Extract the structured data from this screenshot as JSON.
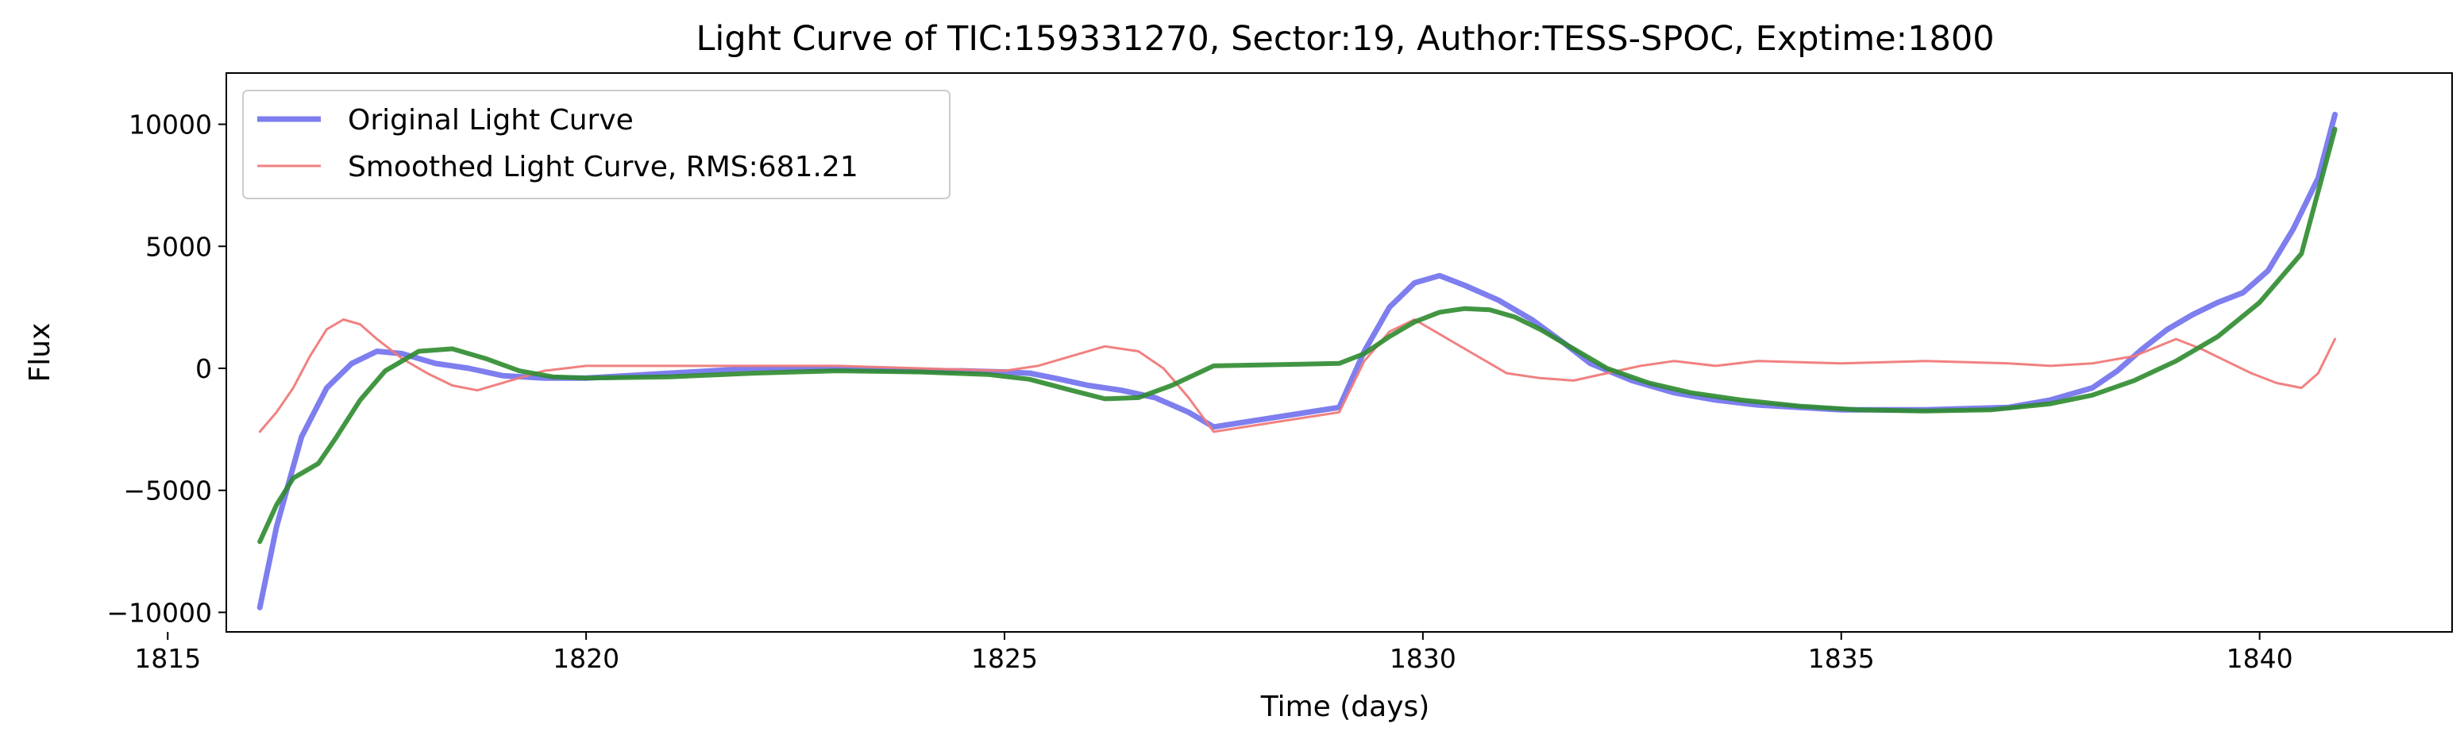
{
  "chart_data": {
    "type": "line",
    "title": "Light Curve of TIC:159331270, Sector:19, Author:TESS-SPOC, Exptime:1800",
    "xlabel": "Time (days)",
    "ylabel": "Flux",
    "xlim": [
      1815.7,
      1842.3
    ],
    "ylim": [
      -10800,
      12100
    ],
    "xticks": [
      1815,
      1820,
      1825,
      1830,
      1835,
      1840
    ],
    "xtick_labels": [
      "1815",
      "1820",
      "1825",
      "1830",
      "1835",
      "1840"
    ],
    "yticks": [
      -10000,
      -5000,
      0,
      5000,
      10000
    ],
    "ytick_labels": [
      "−10000",
      "−5000",
      "0",
      "5000",
      "10000"
    ],
    "grid": false,
    "legend_position": "upper-left",
    "series": [
      {
        "name": "Original Light Curve",
        "color": "#7777ee",
        "x": [
          1816.1,
          1816.3,
          1816.6,
          1816.9,
          1817.2,
          1817.5,
          1817.8,
          1818.2,
          1818.6,
          1819.0,
          1819.5,
          1820.0,
          1820.5,
          1821.0,
          1821.5,
          1822.0,
          1822.5,
          1823.0,
          1823.5,
          1824.0,
          1824.5,
          1825.0,
          1825.3,
          1825.6,
          1826.0,
          1826.4,
          1826.8,
          1827.2,
          1827.5,
          1829.0,
          1829.3,
          1829.6,
          1829.9,
          1830.2,
          1830.5,
          1830.9,
          1831.3,
          1831.7,
          1832.0,
          1832.5,
          1833.0,
          1833.5,
          1834.0,
          1834.5,
          1835.0,
          1835.5,
          1836.0,
          1836.5,
          1837.0,
          1837.5,
          1838.0,
          1838.3,
          1838.6,
          1838.9,
          1839.2,
          1839.5,
          1839.8,
          1840.1,
          1840.4,
          1840.7,
          1840.9
        ],
        "y": [
          -9800,
          -6500,
          -2800,
          -800,
          200,
          700,
          600,
          200,
          0,
          -300,
          -400,
          -400,
          -300,
          -200,
          -100,
          0,
          0,
          0,
          -50,
          -100,
          -100,
          -150,
          -200,
          -400,
          -700,
          -900,
          -1200,
          -1800,
          -2400,
          -1600,
          700,
          2500,
          3500,
          3800,
          3400,
          2800,
          2000,
          1000,
          200,
          -500,
          -1000,
          -1300,
          -1500,
          -1600,
          -1700,
          -1700,
          -1700,
          -1650,
          -1600,
          -1300,
          -800,
          -100,
          800,
          1600,
          2200,
          2700,
          3100,
          4000,
          5700,
          7800,
          10400
        ]
      },
      {
        "name": "Smoothed Light Curve, RMS:681.21",
        "color": "#f07a7a",
        "x": [
          1816.1,
          1816.3,
          1816.5,
          1816.7,
          1816.9,
          1817.1,
          1817.3,
          1817.5,
          1817.8,
          1818.1,
          1818.4,
          1818.7,
          1819.0,
          1819.5,
          1820.0,
          1821.0,
          1822.0,
          1823.0,
          1824.0,
          1825.0,
          1825.4,
          1825.8,
          1826.2,
          1826.6,
          1826.9,
          1827.2,
          1827.5,
          1829.0,
          1829.3,
          1829.6,
          1829.9,
          1830.2,
          1830.6,
          1831.0,
          1831.4,
          1831.8,
          1832.2,
          1832.6,
          1833.0,
          1833.5,
          1834.0,
          1835.0,
          1836.0,
          1837.0,
          1837.5,
          1838.0,
          1838.5,
          1839.0,
          1839.3,
          1839.6,
          1839.9,
          1840.2,
          1840.5,
          1840.7,
          1840.9
        ],
        "y": [
          -2600,
          -1800,
          -800,
          500,
          1600,
          2000,
          1800,
          1200,
          400,
          -200,
          -700,
          -900,
          -600,
          -100,
          100,
          100,
          100,
          100,
          0,
          -100,
          100,
          500,
          900,
          700,
          0,
          -1200,
          -2600,
          -1800,
          300,
          1500,
          2000,
          1400,
          600,
          -200,
          -400,
          -500,
          -200,
          100,
          300,
          100,
          300,
          200,
          300,
          200,
          100,
          200,
          500,
          1200,
          800,
          300,
          -200,
          -600,
          -800,
          -200,
          1200
        ]
      },
      {
        "name": "",
        "color": "#2e8b2e",
        "x": [
          1816.1,
          1816.3,
          1816.5,
          1816.8,
          1817.0,
          1817.3,
          1817.6,
          1818.0,
          1818.4,
          1818.8,
          1819.2,
          1819.6,
          1820.0,
          1821.0,
          1822.0,
          1823.0,
          1824.0,
          1824.8,
          1825.3,
          1825.8,
          1826.2,
          1826.6,
          1827.0,
          1827.5,
          1829.0,
          1829.3,
          1829.6,
          1829.9,
          1830.2,
          1830.5,
          1830.8,
          1831.1,
          1831.4,
          1831.8,
          1832.2,
          1832.7,
          1833.2,
          1833.8,
          1834.5,
          1835.2,
          1836.0,
          1836.8,
          1837.5,
          1838.0,
          1838.5,
          1839.0,
          1839.5,
          1840.0,
          1840.5,
          1840.9
        ],
        "y": [
          -7100,
          -5600,
          -4500,
          -3900,
          -2900,
          -1300,
          -100,
          700,
          800,
          400,
          -100,
          -350,
          -400,
          -350,
          -200,
          -100,
          -150,
          -250,
          -450,
          -900,
          -1250,
          -1200,
          -700,
          100,
          200,
          600,
          1300,
          1900,
          2300,
          2450,
          2400,
          2100,
          1600,
          800,
          0,
          -600,
          -1000,
          -1300,
          -1550,
          -1700,
          -1750,
          -1700,
          -1450,
          -1100,
          -500,
          300,
          1300,
          2700,
          4700,
          9800
        ]
      }
    ]
  }
}
